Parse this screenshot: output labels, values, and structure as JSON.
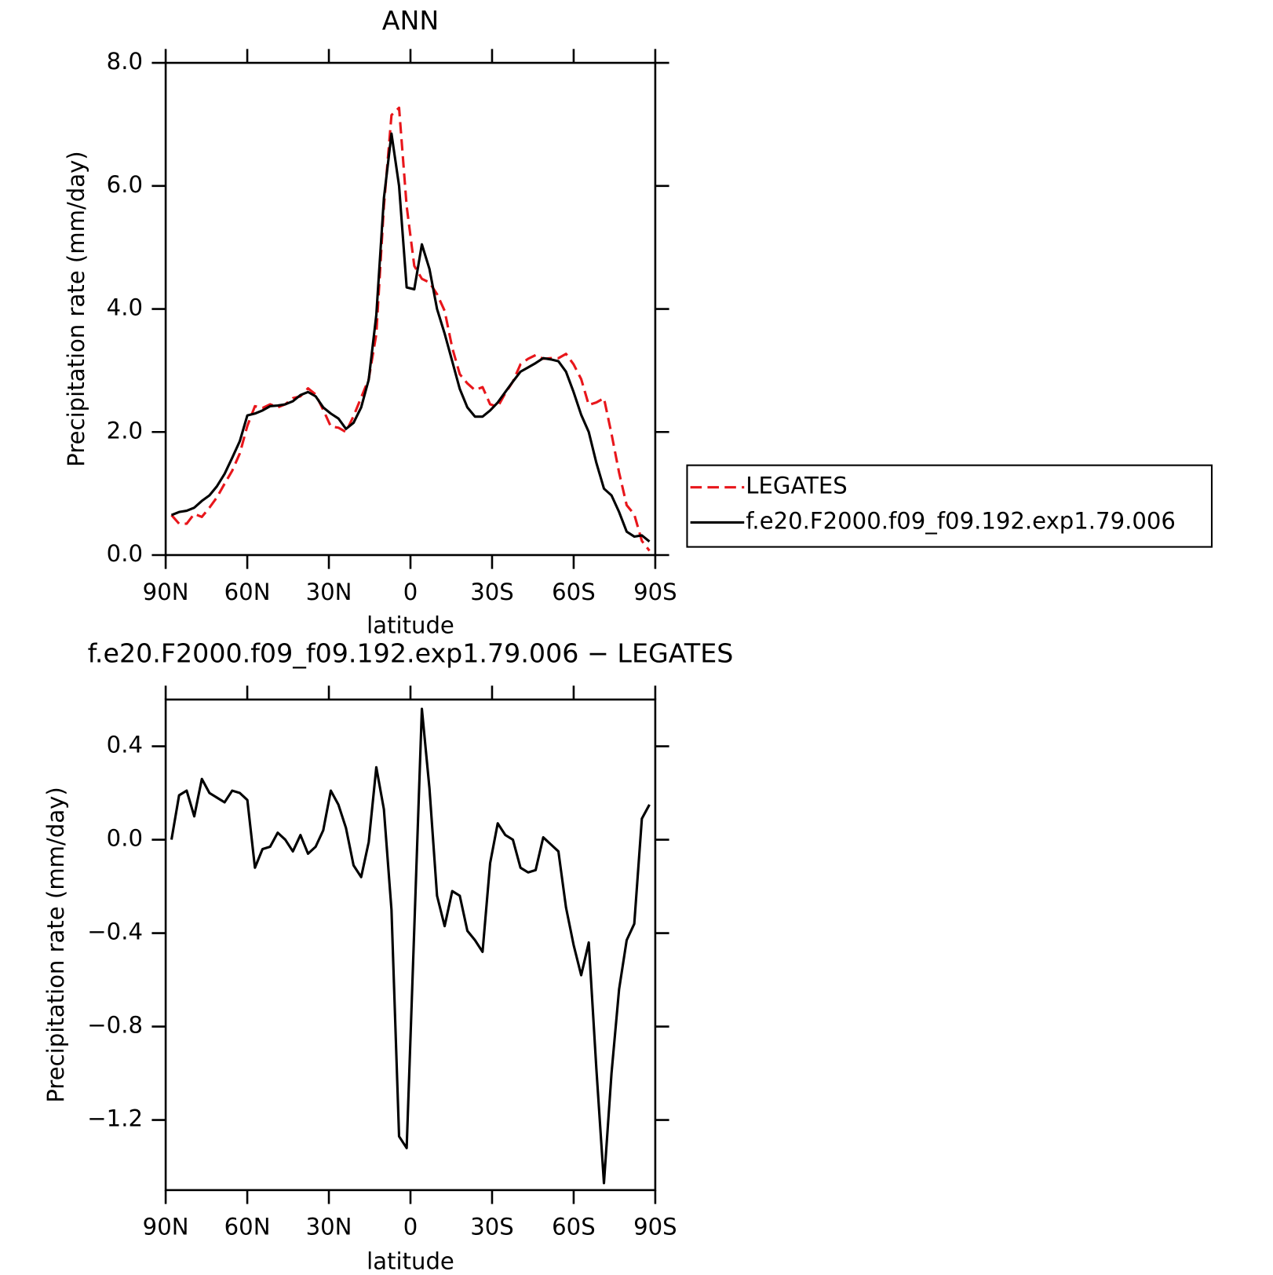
{
  "chart_data": [
    {
      "type": "line",
      "title": "ANN",
      "xlabel": "latitude",
      "ylabel": "Precipitation rate (mm/day)",
      "x": [
        87.86,
        85.07,
        82.28,
        79.49,
        76.7,
        73.91,
        71.13,
        68.34,
        65.55,
        62.76,
        59.97,
        57.18,
        54.39,
        51.6,
        48.81,
        46.02,
        43.24,
        40.45,
        37.66,
        34.87,
        32.08,
        29.29,
        26.5,
        23.71,
        20.92,
        18.13,
        15.35,
        12.56,
        9.77,
        6.98,
        4.19,
        1.4,
        -1.4,
        -4.19,
        -6.98,
        -9.77,
        -12.56,
        -15.35,
        -18.13,
        -20.92,
        -23.71,
        -26.5,
        -29.29,
        -32.08,
        -34.87,
        -37.66,
        -40.45,
        -43.24,
        -46.02,
        -48.81,
        -51.6,
        -54.39,
        -57.18,
        -59.97,
        -62.76,
        -65.55,
        -68.34,
        -71.13,
        -73.91,
        -76.7,
        -79.49,
        -82.28,
        -85.07,
        -87.86
      ],
      "series": [
        {
          "name": "LEGATES",
          "color": "#e8161b",
          "style": "dashed",
          "values": [
            0.65,
            0.51,
            0.51,
            0.67,
            0.62,
            0.77,
            0.94,
            1.16,
            1.37,
            1.65,
            2.1,
            2.42,
            2.39,
            2.45,
            2.4,
            2.45,
            2.55,
            2.58,
            2.71,
            2.61,
            2.36,
            2.09,
            2.07,
            2.0,
            2.26,
            2.56,
            2.86,
            3.59,
            5.67,
            7.15,
            7.27,
            5.67,
            4.7,
            4.49,
            4.43,
            4.24,
            3.97,
            3.37,
            2.94,
            2.79,
            2.68,
            2.73,
            2.45,
            2.41,
            2.63,
            2.82,
            3.1,
            3.19,
            3.25,
            3.19,
            3.2,
            3.2,
            3.27,
            3.1,
            2.86,
            2.44,
            2.48,
            2.55,
            1.97,
            1.34,
            0.81,
            0.66,
            0.23,
            0.07
          ]
        },
        {
          "name": "f.e20.F2000.f09_f09.192.exp1.79.006",
          "color": "#000000",
          "style": "solid",
          "values": [
            0.65,
            0.7,
            0.72,
            0.77,
            0.88,
            0.97,
            1.12,
            1.32,
            1.58,
            1.85,
            2.27,
            2.3,
            2.35,
            2.42,
            2.43,
            2.45,
            2.5,
            2.6,
            2.65,
            2.58,
            2.4,
            2.3,
            2.22,
            2.05,
            2.15,
            2.4,
            2.85,
            3.9,
            5.8,
            6.85,
            6.0,
            4.35,
            4.32,
            5.05,
            4.65,
            4.0,
            3.6,
            3.15,
            2.7,
            2.4,
            2.25,
            2.25,
            2.35,
            2.48,
            2.65,
            2.82,
            2.98,
            3.05,
            3.12,
            3.2,
            3.18,
            3.15,
            2.98,
            2.65,
            2.28,
            2.0,
            1.5,
            1.08,
            0.97,
            0.7,
            0.38,
            0.3,
            0.32,
            0.22
          ]
        }
      ],
      "xlim": [
        90,
        -90
      ],
      "xticks": [
        {
          "value": 90,
          "label": "90N"
        },
        {
          "value": 60,
          "label": "60N"
        },
        {
          "value": 30,
          "label": "30N"
        },
        0,
        {
          "value": -30,
          "label": "30S"
        },
        {
          "value": -60,
          "label": "60S"
        },
        {
          "value": -90,
          "label": "90S"
        }
      ],
      "ylim": [
        0,
        8
      ],
      "yticks": [
        {
          "value": 0,
          "label": "0.0"
        },
        {
          "value": 2,
          "label": "2.0"
        },
        {
          "value": 4,
          "label": "4.0"
        },
        {
          "value": 6,
          "label": "6.0"
        },
        {
          "value": 8,
          "label": "8.0"
        }
      ],
      "legend": "right"
    },
    {
      "type": "line",
      "title": "f.e20.F2000.f09_f09.192.exp1.79.006 − LEGATES",
      "xlabel": "latitude",
      "ylabel": "Precipitation rate (mm/day)",
      "x": [
        87.86,
        85.07,
        82.28,
        79.49,
        76.7,
        73.91,
        71.13,
        68.34,
        65.55,
        62.76,
        59.97,
        57.18,
        54.39,
        51.6,
        48.81,
        46.02,
        43.24,
        40.45,
        37.66,
        34.87,
        32.08,
        29.29,
        26.5,
        23.71,
        20.92,
        18.13,
        15.35,
        12.56,
        9.77,
        6.98,
        4.19,
        1.4,
        -1.4,
        -4.19,
        -6.98,
        -9.77,
        -12.56,
        -15.35,
        -18.13,
        -20.92,
        -23.71,
        -26.5,
        -29.29,
        -32.08,
        -34.87,
        -37.66,
        -40.45,
        -43.24,
        -46.02,
        -48.81,
        -51.6,
        -54.39,
        -57.18,
        -59.97,
        -62.76,
        -65.55,
        -68.34,
        -71.13,
        -73.91,
        -76.7,
        -79.49,
        -82.28,
        -85.07,
        -87.86
      ],
      "series": [
        {
          "color": "#000000",
          "style": "solid",
          "values": [
            0.0,
            0.19,
            0.21,
            0.1,
            0.26,
            0.2,
            0.18,
            0.16,
            0.21,
            0.2,
            0.17,
            -0.12,
            -0.04,
            -0.03,
            0.03,
            0.0,
            -0.05,
            0.02,
            -0.06,
            -0.03,
            0.04,
            0.21,
            0.15,
            0.05,
            -0.11,
            -0.16,
            -0.01,
            0.31,
            0.13,
            -0.3,
            -1.27,
            -1.32,
            -0.38,
            0.56,
            0.22,
            -0.24,
            -0.37,
            -0.22,
            -0.24,
            -0.39,
            -0.43,
            -0.48,
            -0.1,
            0.07,
            0.02,
            0.0,
            -0.12,
            -0.14,
            -0.13,
            0.01,
            -0.02,
            -0.05,
            -0.29,
            -0.45,
            -0.58,
            -0.44,
            -0.98,
            -1.47,
            -1.0,
            -0.64,
            -0.43,
            -0.36,
            0.09,
            0.15
          ]
        }
      ],
      "xlim": [
        90,
        -90
      ],
      "xticks": [
        {
          "value": 90,
          "label": "90N"
        },
        {
          "value": 60,
          "label": "60N"
        },
        {
          "value": 30,
          "label": "30N"
        },
        0,
        {
          "value": -30,
          "label": "30S"
        },
        {
          "value": -60,
          "label": "60S"
        },
        {
          "value": -90,
          "label": "90S"
        }
      ],
      "ylim": [
        -1.5,
        0.6
      ],
      "yticks": [
        {
          "value": 0.4,
          "label": "0.4"
        },
        {
          "value": 0,
          "label": "0.0"
        },
        {
          "value": -0.4,
          "label": "−0.4"
        },
        {
          "value": -0.8,
          "label": "−0.8"
        },
        {
          "value": -1.2,
          "label": "−1.2"
        }
      ]
    }
  ]
}
